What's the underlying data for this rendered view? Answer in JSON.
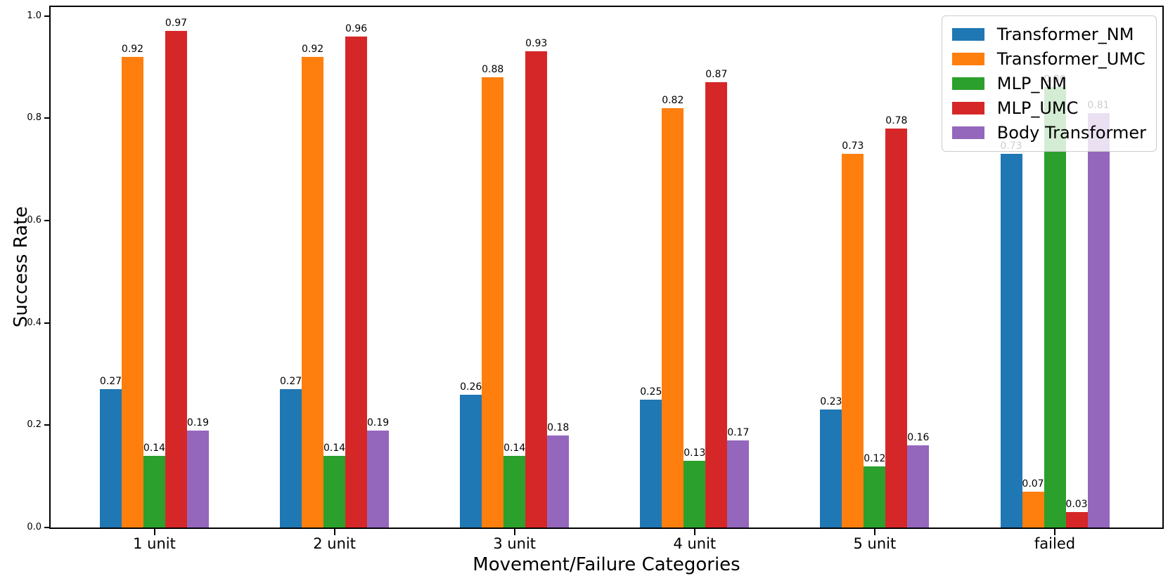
{
  "chart_data": {
    "type": "bar",
    "title": "",
    "xlabel": "Movement/Failure Categories",
    "ylabel": "Success Rate",
    "categories": [
      "1 unit",
      "2 unit",
      "3 unit",
      "4 unit",
      "5 unit",
      "failed"
    ],
    "series": [
      {
        "name": "Transformer_NM",
        "color": "#1f77b4",
        "values": [
          0.27,
          0.27,
          0.26,
          0.25,
          0.23,
          0.73
        ]
      },
      {
        "name": "Transformer_UMC",
        "color": "#ff7f0e",
        "values": [
          0.92,
          0.92,
          0.88,
          0.82,
          0.73,
          0.07
        ]
      },
      {
        "name": "MLP_NM",
        "color": "#2ca02c",
        "values": [
          0.14,
          0.14,
          0.14,
          0.13,
          0.12,
          0.86
        ]
      },
      {
        "name": "MLP_UMC",
        "color": "#d62728",
        "values": [
          0.97,
          0.96,
          0.93,
          0.87,
          0.78,
          0.03
        ]
      },
      {
        "name": "Body Transformer",
        "color": "#9467bd",
        "values": [
          0.19,
          0.19,
          0.18,
          0.17,
          0.16,
          0.81
        ]
      }
    ],
    "bar_value_labels": [
      [
        "0.27",
        "0.27",
        "0.26",
        "0.25",
        "0.23",
        "0.73"
      ],
      [
        "0.92",
        "0.92",
        "0.88",
        "0.82",
        "0.73",
        "0.07"
      ],
      [
        "0.14",
        "0.14",
        "0.14",
        "0.13",
        "0.12",
        "0.86"
      ],
      [
        "0.97",
        "0.96",
        "0.93",
        "0.87",
        "0.78",
        "0.03"
      ],
      [
        "0.19",
        "0.19",
        "0.18",
        "0.17",
        "0.16",
        "0.81"
      ]
    ],
    "yticks": [
      0.0,
      0.2,
      0.4,
      0.6,
      0.8,
      1.0
    ],
    "ytick_labels": [
      "0.0",
      "0.2",
      "0.4",
      "0.6",
      "0.8",
      "1.0"
    ],
    "ylim": [
      0,
      1.02
    ],
    "grid": false,
    "legend_position": "upper right",
    "legend_entries": [
      "Transformer_NM",
      "Transformer_UMC",
      "MLP_NM",
      "MLP_UMC",
      "Body Transformer"
    ]
  }
}
